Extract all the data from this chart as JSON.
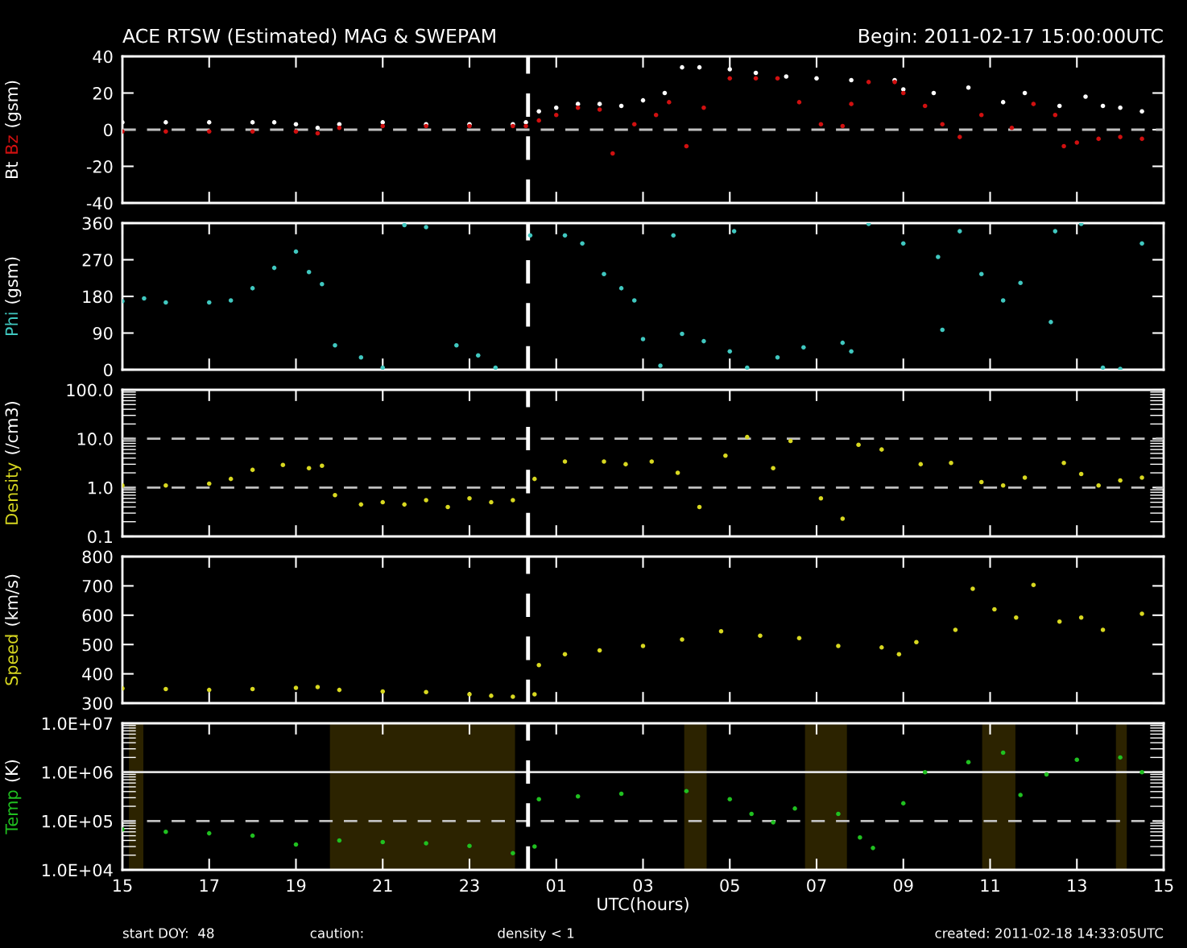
{
  "chart_data": [
    {
      "type": "scatter",
      "title": "ACE RTSW (Estimated) MAG & SWEPAM",
      "subtitle": "Begin: 2011-02-17 15:00:00UTC",
      "ylabel": "(gsm)",
      "marker": "circle",
      "tick_labels": "y",
      "xlim": [
        "2011-02-17T15:00",
        "2011-02-18T15:00"
      ],
      "xticks": [
        {
          "value": "2011-02-17T15:00",
          "label": null
        },
        {
          "value": "2011-02-17T17:00",
          "label": null
        },
        {
          "value": "2011-02-17T19:00",
          "label": null
        },
        {
          "value": "2011-02-17T21:00",
          "label": null
        },
        {
          "value": "2011-02-17T23:00",
          "label": null
        },
        {
          "value": "2011-02-18T01:00",
          "label": null
        },
        {
          "value": "2011-02-18T03:00",
          "label": null
        },
        {
          "value": "2011-02-18T05:00",
          "label": null
        },
        {
          "value": "2011-02-18T07:00",
          "label": null
        },
        {
          "value": "2011-02-18T09:00",
          "label": null
        },
        {
          "value": "2011-02-18T11:00",
          "label": null
        },
        {
          "value": "2011-02-18T13:00",
          "label": null
        },
        {
          "value": "2011-02-18T15:00",
          "label": null
        }
      ],
      "ylim": [
        -40,
        40
      ],
      "yticks": [
        -40,
        -20,
        0,
        20,
        40
      ],
      "ref_lines": [
        {
          "axis": "y",
          "value": 0,
          "color": "#c0c0c0",
          "line_style": "dashed"
        },
        {
          "axis": "x",
          "value": "2011-02-18T00:21",
          "color": "#ffffff",
          "line_style": "dashed"
        }
      ],
      "series": [
        {
          "name": "Bt",
          "color": "#ffffff",
          "x": [
            "2011-02-17T15:00",
            "2011-02-17T16:00",
            "2011-02-17T17:00",
            "2011-02-17T18:00",
            "2011-02-17T18:30",
            "2011-02-17T19:00",
            "2011-02-17T19:30",
            "2011-02-17T20:00",
            "2011-02-17T21:00",
            "2011-02-17T22:00",
            "2011-02-17T23:00",
            "2011-02-18T00:00",
            "2011-02-18T00:18",
            "2011-02-18T00:36",
            "2011-02-18T01:00",
            "2011-02-18T01:30",
            "2011-02-18T02:00",
            "2011-02-18T02:30",
            "2011-02-18T03:00",
            "2011-02-18T03:30",
            "2011-02-18T03:54",
            "2011-02-18T04:18",
            "2011-02-18T05:00",
            "2011-02-18T05:36",
            "2011-02-18T06:18",
            "2011-02-18T07:00",
            "2011-02-18T07:48",
            "2011-02-18T08:48",
            "2011-02-18T09:00",
            "2011-02-18T09:42",
            "2011-02-18T10:30",
            "2011-02-18T11:18",
            "2011-02-18T11:48",
            "2011-02-18T12:36",
            "2011-02-18T13:12",
            "2011-02-18T13:36",
            "2011-02-18T14:00",
            "2011-02-18T14:30"
          ],
          "values": [
            4,
            4,
            4,
            4,
            4,
            3,
            1,
            3,
            4,
            3,
            3,
            3,
            4,
            10,
            12,
            14,
            14,
            13,
            16,
            20,
            34,
            34,
            33,
            31,
            29,
            28,
            27,
            27,
            22,
            20,
            23,
            15,
            20,
            13,
            18,
            13,
            12,
            10
          ]
        },
        {
          "name": "Bz",
          "color": "#d01010",
          "x": [
            "2011-02-17T15:00",
            "2011-02-17T16:00",
            "2011-02-17T17:00",
            "2011-02-17T18:00",
            "2011-02-17T19:00",
            "2011-02-17T19:30",
            "2011-02-17T20:00",
            "2011-02-17T21:00",
            "2011-02-17T22:00",
            "2011-02-17T23:00",
            "2011-02-18T00:00",
            "2011-02-18T00:18",
            "2011-02-18T00:36",
            "2011-02-18T01:00",
            "2011-02-18T01:30",
            "2011-02-18T02:00",
            "2011-02-18T02:18",
            "2011-02-18T02:48",
            "2011-02-18T03:18",
            "2011-02-18T03:36",
            "2011-02-18T04:00",
            "2011-02-18T04:24",
            "2011-02-18T05:00",
            "2011-02-18T05:36",
            "2011-02-18T06:06",
            "2011-02-18T06:36",
            "2011-02-18T07:06",
            "2011-02-18T07:36",
            "2011-02-18T07:48",
            "2011-02-18T08:12",
            "2011-02-18T08:48",
            "2011-02-18T09:00",
            "2011-02-18T09:30",
            "2011-02-18T09:54",
            "2011-02-18T10:18",
            "2011-02-18T10:48",
            "2011-02-18T11:30",
            "2011-02-18T12:00",
            "2011-02-18T12:30",
            "2011-02-18T12:42",
            "2011-02-18T13:00",
            "2011-02-18T13:30",
            "2011-02-18T14:00",
            "2011-02-18T14:30"
          ],
          "values": [
            -1,
            -1,
            -1,
            -1,
            -1,
            -2,
            1,
            2,
            2,
            2,
            2,
            2,
            5,
            8,
            12,
            11,
            -13,
            3,
            8,
            15,
            -9,
            12,
            28,
            28,
            28,
            15,
            3,
            2,
            14,
            26,
            26,
            20,
            13,
            3,
            -4,
            8,
            1,
            14,
            8,
            -9,
            -7,
            -5,
            -4,
            -5
          ]
        }
      ]
    },
    {
      "type": "scatter",
      "ylabel": "(gsm)",
      "marker": "circle",
      "tick_labels": "y",
      "xlim": [
        "2011-02-17T15:00",
        "2011-02-18T15:00"
      ],
      "xticks": [
        {
          "value": "2011-02-17T15:00",
          "label": null
        },
        {
          "value": "2011-02-17T17:00",
          "label": null
        },
        {
          "value": "2011-02-17T19:00",
          "label": null
        },
        {
          "value": "2011-02-17T21:00",
          "label": null
        },
        {
          "value": "2011-02-17T23:00",
          "label": null
        },
        {
          "value": "2011-02-18T01:00",
          "label": null
        },
        {
          "value": "2011-02-18T03:00",
          "label": null
        },
        {
          "value": "2011-02-18T05:00",
          "label": null
        },
        {
          "value": "2011-02-18T07:00",
          "label": null
        },
        {
          "value": "2011-02-18T09:00",
          "label": null
        },
        {
          "value": "2011-02-18T11:00",
          "label": null
        },
        {
          "value": "2011-02-18T13:00",
          "label": null
        },
        {
          "value": "2011-02-18T15:00",
          "label": null
        }
      ],
      "ylim": [
        0,
        360
      ],
      "yticks": [
        0,
        90,
        180,
        270,
        360
      ],
      "ref_lines": [
        {
          "axis": "x",
          "value": "2011-02-18T00:21",
          "color": "#ffffff",
          "line_style": "dashed"
        }
      ],
      "series": [
        {
          "name": "Phi",
          "color": "#40c8c0",
          "x": [
            "2011-02-17T15:00",
            "2011-02-17T15:30",
            "2011-02-17T16:00",
            "2011-02-17T17:00",
            "2011-02-17T17:30",
            "2011-02-17T18:00",
            "2011-02-17T18:30",
            "2011-02-17T19:00",
            "2011-02-17T19:18",
            "2011-02-17T19:36",
            "2011-02-17T19:54",
            "2011-02-17T20:30",
            "2011-02-17T21:00",
            "2011-02-17T21:30",
            "2011-02-17T22:00",
            "2011-02-17T22:42",
            "2011-02-17T23:12",
            "2011-02-17T23:36",
            "2011-02-18T00:24",
            "2011-02-18T01:12",
            "2011-02-18T01:36",
            "2011-02-18T02:06",
            "2011-02-18T02:30",
            "2011-02-18T02:48",
            "2011-02-18T03:00",
            "2011-02-18T03:24",
            "2011-02-18T03:42",
            "2011-02-18T03:54",
            "2011-02-18T04:24",
            "2011-02-18T05:00",
            "2011-02-18T05:06",
            "2011-02-18T05:24",
            "2011-02-18T06:06",
            "2011-02-18T06:42",
            "2011-02-18T07:36",
            "2011-02-18T07:48",
            "2011-02-18T08:12",
            "2011-02-18T09:00",
            "2011-02-18T09:48",
            "2011-02-18T09:54",
            "2011-02-18T10:18",
            "2011-02-18T10:48",
            "2011-02-18T11:18",
            "2011-02-18T11:42",
            "2011-02-18T12:24",
            "2011-02-18T12:30",
            "2011-02-18T13:06",
            "2011-02-18T13:36",
            "2011-02-18T14:00",
            "2011-02-18T14:30"
          ],
          "values": [
            168,
            175,
            165,
            165,
            170,
            200,
            250,
            290,
            240,
            210,
            60,
            30,
            5,
            355,
            350,
            60,
            35,
            5,
            330,
            330,
            310,
            235,
            200,
            170,
            75,
            10,
            330,
            88,
            70,
            45,
            340,
            5,
            30,
            55,
            66,
            45,
            358,
            310,
            277,
            98,
            340,
            235,
            170,
            213,
            117,
            340,
            358,
            5,
            2,
            310
          ]
        }
      ]
    },
    {
      "type": "scatter",
      "ylabel": "(/cm3)",
      "marker": "circle",
      "tick_labels": "y",
      "log": "y",
      "xlim": [
        "2011-02-17T15:00",
        "2011-02-18T15:00"
      ],
      "xticks": [
        {
          "value": "2011-02-17T15:00",
          "label": null
        },
        {
          "value": "2011-02-17T17:00",
          "label": null
        },
        {
          "value": "2011-02-17T19:00",
          "label": null
        },
        {
          "value": "2011-02-17T21:00",
          "label": null
        },
        {
          "value": "2011-02-17T23:00",
          "label": null
        },
        {
          "value": "2011-02-18T01:00",
          "label": null
        },
        {
          "value": "2011-02-18T03:00",
          "label": null
        },
        {
          "value": "2011-02-18T05:00",
          "label": null
        },
        {
          "value": "2011-02-18T07:00",
          "label": null
        },
        {
          "value": "2011-02-18T09:00",
          "label": null
        },
        {
          "value": "2011-02-18T11:00",
          "label": null
        },
        {
          "value": "2011-02-18T13:00",
          "label": null
        },
        {
          "value": "2011-02-18T15:00",
          "label": null
        }
      ],
      "ylim": [
        0.1,
        100
      ],
      "yticks": [
        0.1,
        {
          "value": 1,
          "label": "1.0"
        },
        {
          "value": 10,
          "label": "10.0"
        },
        {
          "value": 100,
          "label": "100.0"
        }
      ],
      "ref_lines": [
        {
          "axis": "y",
          "value": 1,
          "color": "#c0c0c0",
          "line_style": "dashed"
        },
        {
          "axis": "y",
          "value": 10,
          "color": "#c0c0c0",
          "line_style": "dashed"
        },
        {
          "axis": "x",
          "value": "2011-02-18T00:21",
          "color": "#ffffff",
          "line_style": "dashed"
        }
      ],
      "series": [
        {
          "name": "Density",
          "color": "#d8d820",
          "x": [
            "2011-02-17T15:00",
            "2011-02-17T16:00",
            "2011-02-17T17:00",
            "2011-02-17T17:30",
            "2011-02-17T18:00",
            "2011-02-17T18:42",
            "2011-02-17T19:18",
            "2011-02-17T19:36",
            "2011-02-17T19:54",
            "2011-02-17T20:30",
            "2011-02-17T21:00",
            "2011-02-17T21:30",
            "2011-02-17T22:00",
            "2011-02-17T22:30",
            "2011-02-17T23:00",
            "2011-02-17T23:30",
            "2011-02-18T00:00",
            "2011-02-18T00:30",
            "2011-02-18T01:12",
            "2011-02-18T02:06",
            "2011-02-18T02:36",
            "2011-02-18T03:12",
            "2011-02-18T03:48",
            "2011-02-18T04:18",
            "2011-02-18T04:54",
            "2011-02-18T05:24",
            "2011-02-18T06:00",
            "2011-02-18T06:24",
            "2011-02-18T07:06",
            "2011-02-18T07:36",
            "2011-02-18T07:58",
            "2011-02-18T08:30",
            "2011-02-18T09:24",
            "2011-02-18T10:06",
            "2011-02-18T10:48",
            "2011-02-18T11:18",
            "2011-02-18T11:48",
            "2011-02-18T12:42",
            "2011-02-18T13:06",
            "2011-02-18T13:30",
            "2011-02-18T14:00",
            "2011-02-18T14:30"
          ],
          "values": [
            1.1,
            1.1,
            1.2,
            1.5,
            2.3,
            2.9,
            2.5,
            2.8,
            0.7,
            0.45,
            0.5,
            0.45,
            0.55,
            0.4,
            0.6,
            0.5,
            0.55,
            1.5,
            3.4,
            3.4,
            3.0,
            3.4,
            2.0,
            0.4,
            4.5,
            10.8,
            2.5,
            9,
            0.6,
            0.23,
            7.5,
            6,
            3,
            3.2,
            1.3,
            1.1,
            1.6,
            3.2,
            1.9,
            1.1,
            1.4,
            1.6
          ]
        }
      ]
    },
    {
      "type": "scatter",
      "ylabel": "(km/s)",
      "marker": "circle",
      "tick_labels": "y",
      "xlim": [
        "2011-02-17T15:00",
        "2011-02-18T15:00"
      ],
      "xticks": [
        {
          "value": "2011-02-17T15:00",
          "label": null
        },
        {
          "value": "2011-02-17T17:00",
          "label": null
        },
        {
          "value": "2011-02-17T19:00",
          "label": null
        },
        {
          "value": "2011-02-17T21:00",
          "label": null
        },
        {
          "value": "2011-02-17T23:00",
          "label": null
        },
        {
          "value": "2011-02-18T01:00",
          "label": null
        },
        {
          "value": "2011-02-18T03:00",
          "label": null
        },
        {
          "value": "2011-02-18T05:00",
          "label": null
        },
        {
          "value": "2011-02-18T07:00",
          "label": null
        },
        {
          "value": "2011-02-18T09:00",
          "label": null
        },
        {
          "value": "2011-02-18T11:00",
          "label": null
        },
        {
          "value": "2011-02-18T13:00",
          "label": null
        },
        {
          "value": "2011-02-18T15:00",
          "label": null
        }
      ],
      "ylim": [
        300,
        800
      ],
      "yticks": [
        300,
        400,
        500,
        600,
        700,
        800
      ],
      "ref_lines": [
        {
          "axis": "x",
          "value": "2011-02-18T00:21",
          "color": "#ffffff",
          "line_style": "dashed"
        }
      ],
      "series": [
        {
          "name": "Speed",
          "color": "#d8d820",
          "x": [
            "2011-02-17T15:00",
            "2011-02-17T16:00",
            "2011-02-17T17:00",
            "2011-02-17T18:00",
            "2011-02-17T19:00",
            "2011-02-17T19:30",
            "2011-02-17T20:00",
            "2011-02-17T21:00",
            "2011-02-17T22:00",
            "2011-02-17T23:00",
            "2011-02-17T23:30",
            "2011-02-18T00:00",
            "2011-02-18T00:30",
            "2011-02-18T00:36",
            "2011-02-18T01:12",
            "2011-02-18T02:00",
            "2011-02-18T03:00",
            "2011-02-18T03:54",
            "2011-02-18T04:48",
            "2011-02-18T05:42",
            "2011-02-18T06:36",
            "2011-02-18T07:30",
            "2011-02-18T08:30",
            "2011-02-18T08:54",
            "2011-02-18T09:18",
            "2011-02-18T10:12",
            "2011-02-18T10:36",
            "2011-02-18T11:06",
            "2011-02-18T11:36",
            "2011-02-18T12:00",
            "2011-02-18T12:36",
            "2011-02-18T13:06",
            "2011-02-18T13:36",
            "2011-02-18T14:30"
          ],
          "values": [
            350,
            348,
            345,
            348,
            352,
            355,
            345,
            340,
            338,
            330,
            325,
            322,
            330,
            430,
            467,
            480,
            495,
            517,
            545,
            530,
            522,
            495,
            490,
            467,
            508,
            550,
            690,
            620,
            592,
            703,
            578,
            592,
            550,
            605
          ]
        }
      ]
    },
    {
      "type": "scatter",
      "ylabel": "(K)",
      "xlabel": "UTC(hours)",
      "marker": "circle",
      "log": "y",
      "xlim": [
        "2011-02-17T15:00",
        "2011-02-18T15:00"
      ],
      "xticks": [
        {
          "value": "2011-02-17T15:00",
          "label": "15"
        },
        {
          "value": "2011-02-17T17:00",
          "label": "17"
        },
        {
          "value": "2011-02-17T19:00",
          "label": "19"
        },
        {
          "value": "2011-02-17T21:00",
          "label": "21"
        },
        {
          "value": "2011-02-17T23:00",
          "label": "23"
        },
        {
          "value": "2011-02-18T01:00",
          "label": "01"
        },
        {
          "value": "2011-02-18T03:00",
          "label": "03"
        },
        {
          "value": "2011-02-18T05:00",
          "label": "05"
        },
        {
          "value": "2011-02-18T07:00",
          "label": "07"
        },
        {
          "value": "2011-02-18T09:00",
          "label": "09"
        },
        {
          "value": "2011-02-18T11:00",
          "label": "11"
        },
        {
          "value": "2011-02-18T13:00",
          "label": "13"
        },
        {
          "value": "2011-02-18T15:00",
          "label": "15"
        }
      ],
      "ylim": [
        10000,
        10000000
      ],
      "yticks": [
        {
          "value": 10000,
          "label": "1.0E+04"
        },
        {
          "value": 100000,
          "label": "1.0E+05"
        },
        {
          "value": 1000000,
          "label": "1.0E+06"
        },
        {
          "value": 10000000,
          "label": "1.0E+07"
        }
      ],
      "ref_lines": [
        {
          "axis": "y",
          "value": 100000,
          "color": "#c0c0c0",
          "line_style": "dashed"
        },
        {
          "axis": "y",
          "value": 1000000,
          "color": "#e0e0e0",
          "line_style": "solid"
        },
        {
          "axis": "x",
          "value": "2011-02-18T00:21",
          "color": "#ffffff",
          "line_style": "dashed"
        }
      ],
      "bands": [
        {
          "axis": "x",
          "from": "2011-02-17T15:09",
          "to": "2011-02-17T15:29",
          "color": "#c8a000"
        },
        {
          "axis": "x",
          "from": "2011-02-17T19:47",
          "to": "2011-02-18T00:03",
          "color": "#c8a000"
        },
        {
          "axis": "x",
          "from": "2011-02-18T03:57",
          "to": "2011-02-18T04:28",
          "color": "#c8a000"
        },
        {
          "axis": "x",
          "from": "2011-02-18T06:44",
          "to": "2011-02-18T07:42",
          "color": "#c8a000"
        },
        {
          "axis": "x",
          "from": "2011-02-18T10:49",
          "to": "2011-02-18T11:35",
          "color": "#c8a000"
        },
        {
          "axis": "x",
          "from": "2011-02-18T13:54",
          "to": "2011-02-18T14:09",
          "color": "#c8a000"
        }
      ],
      "annotations": [
        "start DOY:  48",
        "caution:",
        "density < 1",
        "created: 2011-02-18 14:33:05UTC"
      ],
      "series": [
        {
          "name": "Temp",
          "color": "#20c020",
          "x": [
            "2011-02-17T15:00",
            "2011-02-17T16:00",
            "2011-02-17T17:00",
            "2011-02-17T18:00",
            "2011-02-17T19:00",
            "2011-02-17T20:00",
            "2011-02-17T21:00",
            "2011-02-17T22:00",
            "2011-02-17T23:00",
            "2011-02-18T00:00",
            "2011-02-18T00:30",
            "2011-02-18T00:36",
            "2011-02-18T01:30",
            "2011-02-18T02:30",
            "2011-02-18T04:00",
            "2011-02-18T05:00",
            "2011-02-18T05:30",
            "2011-02-18T06:00",
            "2011-02-18T06:30",
            "2011-02-18T07:30",
            "2011-02-18T08:00",
            "2011-02-18T08:18",
            "2011-02-18T09:00",
            "2011-02-18T09:30",
            "2011-02-18T10:30",
            "2011-02-18T11:18",
            "2011-02-18T11:42",
            "2011-02-18T12:18",
            "2011-02-18T13:00",
            "2011-02-18T14:00",
            "2011-02-18T14:30"
          ],
          "values": [
            67000,
            60000,
            56000,
            50000,
            33000,
            40000,
            37000,
            35000,
            31000,
            22000,
            30000,
            280000,
            320000,
            360000,
            410000,
            280000,
            140000,
            94000,
            180000,
            140000,
            46000,
            28000,
            230000,
            1000000,
            1600000,
            2500000,
            340000,
            900000,
            1800000,
            2000000,
            1000000
          ]
        }
      ]
    }
  ]
}
